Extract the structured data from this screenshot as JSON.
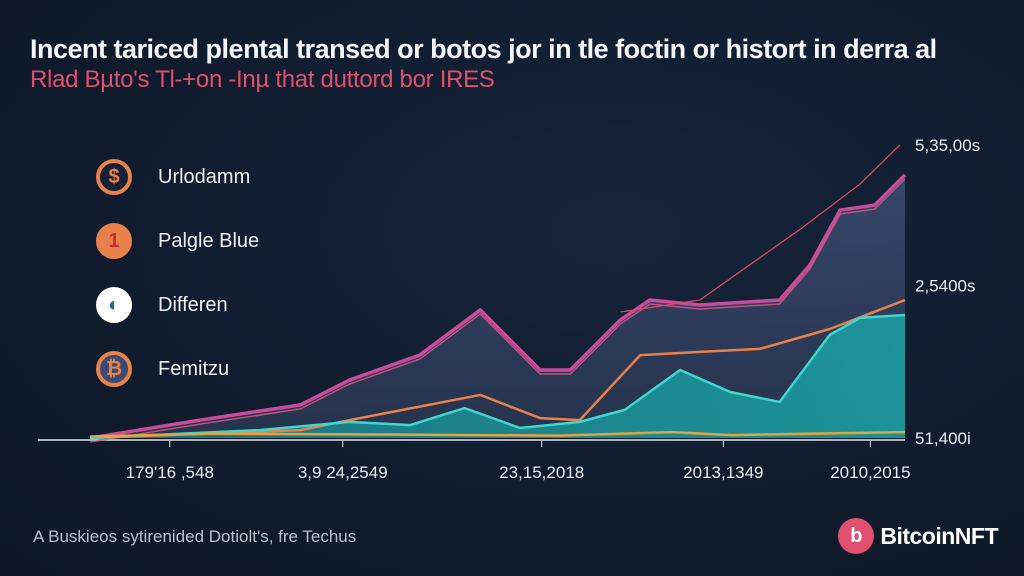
{
  "chart_data": {
    "type": "area",
    "title": "Incent tariced plental transed or botos jor in tle foctin or histort in derra al",
    "subtitle": "Rlad Bµto's Tl-+on -Inµ that duttord bor IRES",
    "x_tick_labels": [
      "179'16 ,548",
      "3,9 24,2549",
      "23,15,2018",
      "2013,1349",
      "2010,2015"
    ],
    "x_tick_positions": [
      15,
      35,
      58,
      79,
      96
    ],
    "y_tick_labels": [
      "5,35,00s",
      "2,5400s",
      "51,400i"
    ],
    "y_tick_values": [
      100,
      52,
      0
    ],
    "xlim": [
      0,
      100
    ],
    "ylim": [
      0,
      100
    ],
    "grid": false,
    "legend_position": "left",
    "series": [
      {
        "name": "Urlodamm",
        "color": "#c94b9a",
        "fill": true,
        "x": [
          5.8,
          18.5,
          30.1,
          35.8,
          43.9,
          50.9,
          57.8,
          61.3,
          67.1,
          70.5,
          76.3,
          85.5,
          89,
          92.5,
          96.5,
          100
        ],
        "y": [
          0,
          6.1,
          11.3,
          19.8,
          28.3,
          43.7,
          23.2,
          23.2,
          40.3,
          47.1,
          45.4,
          47.1,
          59,
          77.8,
          79.5,
          89.8
        ]
      },
      {
        "name": "Palgle Blue",
        "color": "#e8824a",
        "fill": false,
        "x": [
          5.8,
          30.1,
          35.8,
          50.9,
          57.8,
          62.4,
          69.4,
          76.3,
          83.2,
          91.3,
          100
        ],
        "y": [
          0,
          2.7,
          6.1,
          14.7,
          6.8,
          6.1,
          28.3,
          29.4,
          30.4,
          37.2,
          47.1
        ]
      },
      {
        "name": "Differen",
        "color": "#3fd6cf",
        "fill": true,
        "x": [
          5.8,
          25.4,
          35.8,
          42.8,
          49.1,
          55.5,
          62.4,
          67.6,
          74,
          79.8,
          85.5,
          91.3,
          94.8,
          100
        ],
        "y": [
          0,
          2.7,
          5.5,
          4.4,
          10.2,
          3.4,
          5.5,
          9.6,
          23.2,
          15.7,
          12.3,
          35.2,
          41,
          42
        ]
      },
      {
        "name": "Femitzu",
        "color": "#e0a640",
        "fill": false,
        "x": [
          5.8,
          20,
          40,
          60,
          73,
          80,
          100
        ],
        "y": [
          0.5,
          1.5,
          1.2,
          0.8,
          2,
          1,
          2
        ]
      },
      {
        "name": "trend",
        "color": "#d9476a",
        "fill": false,
        "x": [
          67.1,
          76.3,
          87.9,
          94.8,
          99.4
        ],
        "y": [
          43,
          47.1,
          71.3,
          86.7,
          100
        ]
      }
    ]
  },
  "legend": {
    "items": [
      {
        "label": "Urlodamm",
        "icon": "dollar-coin-icon",
        "glyph": "$",
        "bg": "#152236",
        "border": "#e8824a",
        "fg": "#e8824a"
      },
      {
        "label": "Palgle Blue",
        "icon": "red-token-icon",
        "glyph": "1",
        "bg": "#e8824a",
        "border": "#e8824a",
        "fg": "#c8283c"
      },
      {
        "label": "Differen",
        "icon": "globe-icon",
        "glyph": "◐",
        "bg": "#ffffff",
        "border": "#ffffff",
        "fg": "#2a6a9a"
      },
      {
        "label": "Femitzu",
        "icon": "bitcoin-coin-icon",
        "glyph": "₿",
        "bg": "#3a4a70",
        "border": "#e8824a",
        "fg": "#e8824a"
      }
    ]
  },
  "footer": {
    "caption": "A Buskieos sytirenided Dotiolt's, fre Techus"
  },
  "brand": {
    "name": "BitcoinNFT",
    "logo_glyph": "b",
    "color": "#e0506e"
  }
}
